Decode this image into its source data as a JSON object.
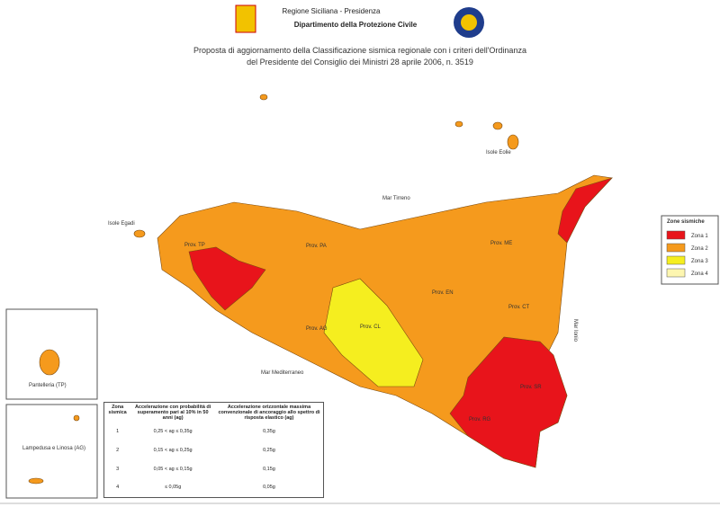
{
  "header": {
    "region": "Regione Siciliana - Presidenza",
    "department": "Dipartimento della Protezione Civile",
    "title_line1": "Proposta di aggiornamento della Classificazione sismica regionale con i criteri dell'Ordinanza",
    "title_line2": "del Presidente del Consiglio dei Ministri 28 aprile 2006, n. 3519"
  },
  "map_labels": [
    "Isole Eolie",
    "Mar Tirreno",
    "Isole Egadi",
    "Prov. TP",
    "Prov. PA",
    "Prov. ME",
    "Prov. EN",
    "Prov. CT",
    "Prov. AG",
    "Prov. CL",
    "Mar Mediterraneo",
    "Prov. SR",
    "Prov. RG",
    "Mar Ionio"
  ],
  "insets": [
    "Pantelleria (TP)",
    "Lampedusa e Linosa (AG)"
  ],
  "legend": {
    "title": "Zone sismiche",
    "items": [
      {
        "label": "Zona 1",
        "color": "#e8141b"
      },
      {
        "label": "Zona 2",
        "color": "#f59a1d"
      },
      {
        "label": "Zona 3",
        "color": "#f5ee1f"
      },
      {
        "label": "Zona 4",
        "color": "#fdf6b0"
      }
    ]
  },
  "table": {
    "headers": [
      "Zona sismica",
      "Accelerazione con probabilità di superamento pari al 10% in 50 anni (ag)",
      "Accelerazione orizzontale massima convenzionale di ancoraggio allo spettro di risposta elastico (ag)"
    ],
    "rows": [
      [
        "1",
        "0,25 < ag ≤ 0,35g",
        "0,35g"
      ],
      [
        "2",
        "0,15 < ag ≤ 0,25g",
        "0,25g"
      ],
      [
        "3",
        "0,05 < ag ≤ 0,15g",
        "0,15g"
      ],
      [
        "4",
        "≤ 0,05g",
        "0,05g"
      ]
    ]
  }
}
